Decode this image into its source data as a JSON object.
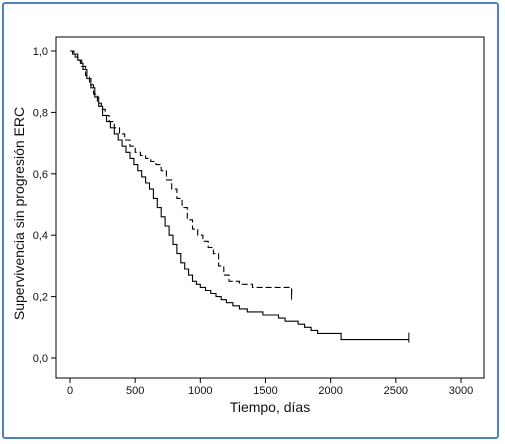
{
  "chart_data": {
    "type": "line",
    "title": "",
    "xlabel": "Tiempo, días",
    "ylabel": "Supervivencia sin progresión ERC",
    "xlim": [
      0,
      3000
    ],
    "ylim": [
      0.0,
      1.0
    ],
    "x_ticks": [
      0,
      500,
      1000,
      1500,
      2000,
      2500,
      3000
    ],
    "x_tick_labels": [
      "0",
      "500",
      "1000",
      "1500",
      "2000",
      "2500",
      "3000"
    ],
    "y_ticks": [
      0.0,
      0.2,
      0.4,
      0.6,
      0.8,
      1.0
    ],
    "y_tick_labels": [
      "0,0",
      "0,2",
      "0,4",
      "0,6",
      "0,8",
      "1,0"
    ],
    "grid": false,
    "legend": "none",
    "series": [
      {
        "style": "solid",
        "color": "#000000",
        "x": [
          0,
          20,
          40,
          60,
          80,
          100,
          130,
          160,
          190,
          220,
          250,
          280,
          310,
          340,
          370,
          400,
          430,
          460,
          490,
          520,
          550,
          580,
          610,
          640,
          670,
          700,
          730,
          760,
          790,
          820,
          850,
          880,
          910,
          940,
          970,
          1000,
          1040,
          1080,
          1120,
          1160,
          1200,
          1250,
          1300,
          1360,
          1420,
          1480,
          1540,
          1600,
          1650,
          1700,
          1750,
          1800,
          1850,
          1900,
          2000,
          2080,
          2200,
          2400,
          2600
        ],
        "y": [
          1.0,
          0.99,
          0.98,
          0.97,
          0.96,
          0.94,
          0.91,
          0.88,
          0.85,
          0.82,
          0.79,
          0.77,
          0.75,
          0.73,
          0.71,
          0.69,
          0.67,
          0.65,
          0.63,
          0.61,
          0.59,
          0.57,
          0.55,
          0.52,
          0.49,
          0.46,
          0.43,
          0.4,
          0.37,
          0.34,
          0.31,
          0.29,
          0.27,
          0.25,
          0.24,
          0.23,
          0.22,
          0.21,
          0.2,
          0.19,
          0.18,
          0.17,
          0.16,
          0.15,
          0.15,
          0.14,
          0.14,
          0.13,
          0.12,
          0.12,
          0.11,
          0.1,
          0.09,
          0.08,
          0.08,
          0.06,
          0.06,
          0.06,
          0.06
        ]
      },
      {
        "style": "dashed",
        "color": "#000000",
        "x": [
          0,
          30,
          60,
          90,
          120,
          150,
          180,
          210,
          240,
          270,
          300,
          340,
          380,
          420,
          460,
          500,
          540,
          580,
          620,
          660,
          700,
          740,
          780,
          820,
          860,
          900,
          940,
          980,
          1020,
          1060,
          1100,
          1140,
          1180,
          1220,
          1300,
          1400,
          1500,
          1600,
          1700
        ],
        "y": [
          1.0,
          0.99,
          0.97,
          0.95,
          0.92,
          0.89,
          0.86,
          0.83,
          0.81,
          0.79,
          0.77,
          0.75,
          0.73,
          0.71,
          0.69,
          0.67,
          0.66,
          0.65,
          0.64,
          0.63,
          0.61,
          0.58,
          0.55,
          0.52,
          0.49,
          0.45,
          0.42,
          0.4,
          0.38,
          0.36,
          0.34,
          0.3,
          0.27,
          0.25,
          0.24,
          0.23,
          0.23,
          0.23,
          0.2
        ]
      }
    ]
  }
}
